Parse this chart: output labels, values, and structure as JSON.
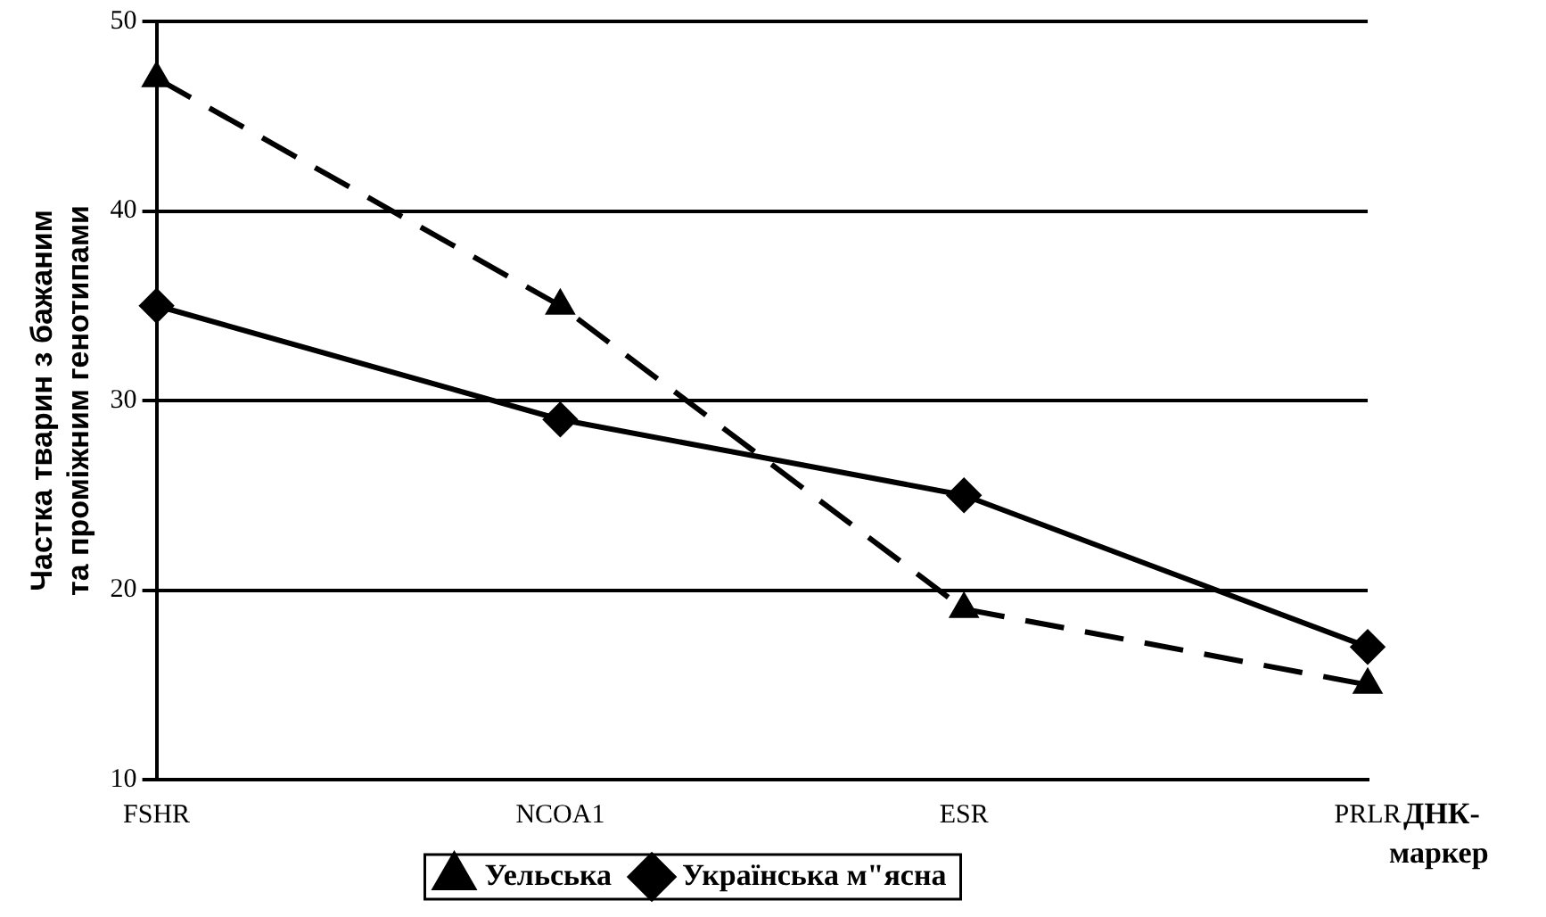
{
  "chart_data": {
    "type": "line",
    "ylabel": "Частка тварин з бажаним та проміжним генотипами",
    "xlabel": "ДНК-маркер",
    "categories": [
      "FSHR",
      "NCOA1",
      "ESR",
      "PRLR"
    ],
    "series": [
      {
        "name": "Уельська",
        "color": "#000000",
        "values": [
          47,
          35,
          19,
          15
        ],
        "marker": "triangle",
        "line_style": "dashed"
      },
      {
        "name": "Українська м\"ясна",
        "color": "#000000",
        "values": [
          35,
          29,
          25,
          17
        ],
        "marker": "diamond",
        "line_style": "solid"
      }
    ],
    "ylim": [
      10,
      50
    ],
    "yticks": [
      10,
      20,
      30,
      40,
      50
    ],
    "grid": "y",
    "legend": "bottom"
  }
}
